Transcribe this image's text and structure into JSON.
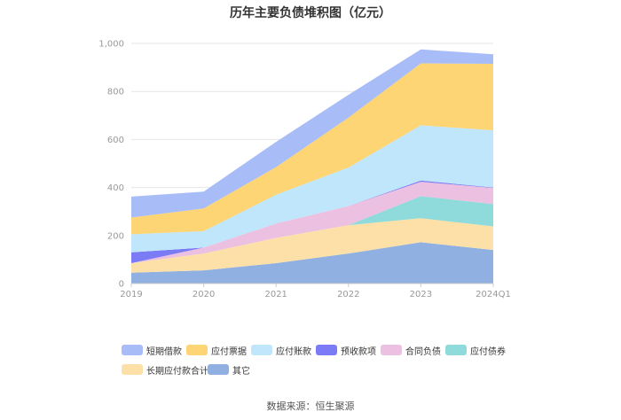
{
  "chart_data": {
    "type": "area",
    "stacked": true,
    "title": "历年主要负债堆积图（亿元）",
    "x": [
      "2019",
      "2020",
      "2021",
      "2022",
      "2023",
      "2024Q1"
    ],
    "y_ticks": [
      "0",
      "200",
      "400",
      "600",
      "800",
      "1,000"
    ],
    "ylim": [
      0,
      1000
    ],
    "grid": true,
    "legend_position": "bottom",
    "series": [
      {
        "name": "其它",
        "color": "#8fb0e0",
        "values": [
          45,
          55,
          85,
          125,
          172,
          140
        ]
      },
      {
        "name": "长期应付款合计",
        "color": "#fde0a8",
        "values": [
          40,
          70,
          105,
          118,
          100,
          98
        ]
      },
      {
        "name": "应付债券",
        "color": "#8fdada",
        "values": [
          0,
          0,
          0,
          0,
          92,
          93
        ]
      },
      {
        "name": "合同负债",
        "color": "#ebc0e0",
        "values": [
          0,
          25,
          60,
          80,
          60,
          67
        ]
      },
      {
        "name": "预收款项",
        "color": "#7b7cf5",
        "values": [
          45,
          0,
          0,
          0,
          5,
          2
        ]
      },
      {
        "name": "应付账款",
        "color": "#bfe6fb",
        "values": [
          75,
          68,
          120,
          160,
          230,
          238
        ]
      },
      {
        "name": "应付票据",
        "color": "#fed574",
        "values": [
          70,
          95,
          115,
          208,
          258,
          277
        ]
      },
      {
        "name": "短期借款",
        "color": "#a8bcf8",
        "values": [
          87,
          70,
          105,
          95,
          58,
          40
        ]
      }
    ]
  },
  "legend": {
    "items": [
      {
        "name": "短期借款",
        "color": "#a8bcf8"
      },
      {
        "name": "应付票据",
        "color": "#fed574"
      },
      {
        "name": "应付账款",
        "color": "#bfe6fb"
      },
      {
        "name": "预收款项",
        "color": "#7b7cf5"
      },
      {
        "name": "合同负债",
        "color": "#ebc0e0"
      },
      {
        "name": "应付债券",
        "color": "#8fdada"
      },
      {
        "name": "长期应付款合计",
        "color": "#fde0a8"
      },
      {
        "name": "其它",
        "color": "#8fb0e0"
      }
    ]
  },
  "source": "数据来源：恒生聚源"
}
